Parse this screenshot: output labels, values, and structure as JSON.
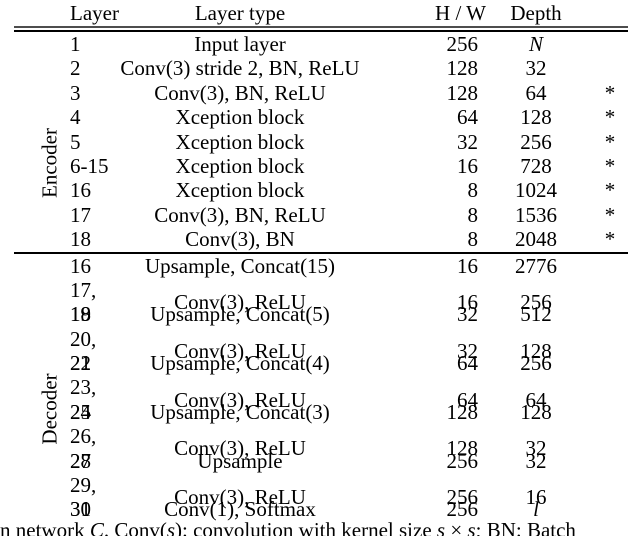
{
  "table": {
    "columns": [
      "Layer",
      "Layer type",
      "H / W",
      "Depth"
    ],
    "star_symbol": "*",
    "sections": [
      {
        "label": "Encoder",
        "rows": [
          {
            "layer": "1",
            "type": "Input layer",
            "hw": "256",
            "depth": "N",
            "depth_italic": true,
            "star": false
          },
          {
            "layer": "2",
            "type": "Conv(3) stride 2, BN, ReLU",
            "hw": "128",
            "depth": "32",
            "depth_italic": false,
            "star": false
          },
          {
            "layer": "3",
            "type": "Conv(3), BN, ReLU",
            "hw": "128",
            "depth": "64",
            "depth_italic": false,
            "star": true
          },
          {
            "layer": "4",
            "type": "Xception block",
            "hw": "64",
            "depth": "128",
            "depth_italic": false,
            "star": true
          },
          {
            "layer": "5",
            "type": "Xception block",
            "hw": "32",
            "depth": "256",
            "depth_italic": false,
            "star": true
          },
          {
            "layer": "6-15",
            "type": "Xception block",
            "hw": "16",
            "depth": "728",
            "depth_italic": false,
            "star": true
          },
          {
            "layer": "16",
            "type": "Xception block",
            "hw": "8",
            "depth": "1024",
            "depth_italic": false,
            "star": true
          },
          {
            "layer": "17",
            "type": "Conv(3), BN, ReLU",
            "hw": "8",
            "depth": "1536",
            "depth_italic": false,
            "star": true
          },
          {
            "layer": "18",
            "type": "Conv(3), BN",
            "hw": "8",
            "depth": "2048",
            "depth_italic": false,
            "star": true
          }
        ]
      },
      {
        "label": "Decoder",
        "rows": [
          {
            "layer": "16",
            "type": "Upsample, Concat(15)",
            "hw": "16",
            "depth": "2776",
            "depth_italic": false,
            "star": false
          },
          {
            "layer": "17, 18",
            "type": "Conv(3), ReLU",
            "hw": "16",
            "depth": "256",
            "depth_italic": false,
            "star": false
          },
          {
            "layer": "19",
            "type": "Upsample, Concat(5)",
            "hw": "32",
            "depth": "512",
            "depth_italic": false,
            "star": false
          },
          {
            "layer": "20, 21",
            "type": "Conv(3), ReLU",
            "hw": "32",
            "depth": "128",
            "depth_italic": false,
            "star": false
          },
          {
            "layer": "22",
            "type": "Upsample, Concat(4)",
            "hw": "64",
            "depth": "256",
            "depth_italic": false,
            "star": false
          },
          {
            "layer": "23, 24",
            "type": "Conv(3), ReLU",
            "hw": "64",
            "depth": "64",
            "depth_italic": false,
            "star": false
          },
          {
            "layer": "25",
            "type": "Upsample, Concat(3)",
            "hw": "128",
            "depth": "128",
            "depth_italic": false,
            "star": false
          },
          {
            "layer": "26, 27",
            "type": "Conv(3), ReLU",
            "hw": "128",
            "depth": "32",
            "depth_italic": false,
            "star": false
          },
          {
            "layer": "28",
            "type": "Upsample",
            "hw": "256",
            "depth": "32",
            "depth_italic": false,
            "star": false
          },
          {
            "layer": "29, 30",
            "type": "Conv(3), ReLU",
            "hw": "256",
            "depth": "16",
            "depth_italic": false,
            "star": false
          },
          {
            "layer": "31",
            "type": "Conv(1), Softmax",
            "hw": "256",
            "depth": "l",
            "depth_italic": true,
            "star": false
          }
        ]
      }
    ]
  },
  "caption": {
    "segments": [
      {
        "text": "n network ",
        "italic": false
      },
      {
        "text": "C",
        "italic": true
      },
      {
        "text": ". Conv(",
        "italic": false
      },
      {
        "text": "s",
        "italic": true
      },
      {
        "text": "): convolution with kernel size ",
        "italic": false
      },
      {
        "text": "s",
        "italic": true
      },
      {
        "text": " × ",
        "italic": false
      },
      {
        "text": "s",
        "italic": true
      },
      {
        "text": "; BN: Batch",
        "italic": false
      }
    ]
  },
  "colors": {
    "text": "#000000",
    "background": "#ffffff",
    "rule_top_gray": "#4d4d4d",
    "rule_black": "#000000"
  }
}
